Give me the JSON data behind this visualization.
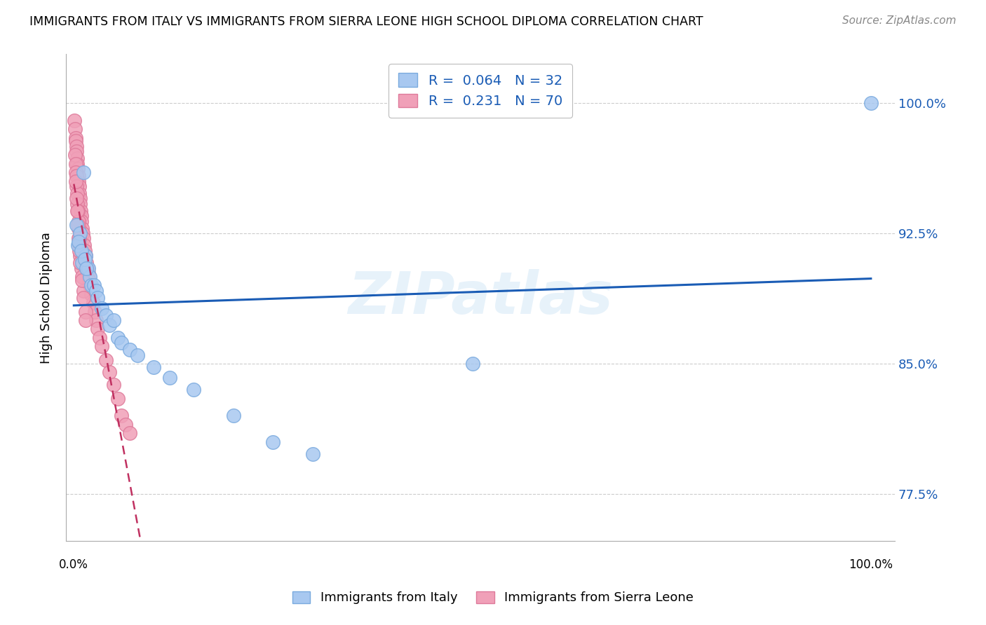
{
  "title": "IMMIGRANTS FROM ITALY VS IMMIGRANTS FROM SIERRA LEONE HIGH SCHOOL DIPLOMA CORRELATION CHART",
  "source": "Source: ZipAtlas.com",
  "ylabel": "High School Diploma",
  "yticks": [
    0.775,
    0.85,
    0.925,
    1.0
  ],
  "ytick_labels": [
    "77.5%",
    "85.0%",
    "92.5%",
    "100.0%"
  ],
  "legend_italy_R": "0.064",
  "legend_italy_N": "32",
  "legend_sierra_R": "0.231",
  "legend_sierra_N": "70",
  "legend_label_italy": "Immigrants from Italy",
  "legend_label_sierra": "Immigrants from Sierra Leone",
  "italy_color": "#a8c8f0",
  "sierra_color": "#f0a0b8",
  "italy_edge_color": "#7aaade",
  "sierra_edge_color": "#de7a9a",
  "italy_line_color": "#1a5cb5",
  "sierra_line_color": "#c03060",
  "watermark_text": "ZIPatlas",
  "italy_x": [
    0.3,
    1.2,
    0.5,
    0.8,
    1.5,
    0.6,
    1.0,
    0.9,
    1.8,
    2.0,
    2.2,
    1.4,
    1.6,
    2.5,
    2.8,
    3.0,
    3.5,
    4.0,
    4.5,
    5.0,
    5.5,
    6.0,
    7.0,
    8.0,
    10.0,
    12.0,
    15.0,
    20.0,
    25.0,
    30.0,
    50.0,
    100.0
  ],
  "italy_y": [
    0.93,
    0.96,
    0.918,
    0.925,
    0.912,
    0.92,
    0.908,
    0.915,
    0.905,
    0.9,
    0.895,
    0.91,
    0.905,
    0.895,
    0.892,
    0.888,
    0.882,
    0.878,
    0.872,
    0.875,
    0.865,
    0.862,
    0.858,
    0.855,
    0.848,
    0.842,
    0.835,
    0.82,
    0.805,
    0.798,
    0.85,
    1.0
  ],
  "sierra_x": [
    0.1,
    0.15,
    0.2,
    0.25,
    0.3,
    0.35,
    0.4,
    0.45,
    0.5,
    0.55,
    0.6,
    0.65,
    0.7,
    0.75,
    0.8,
    0.85,
    0.9,
    0.95,
    1.0,
    1.1,
    1.2,
    1.3,
    1.4,
    1.5,
    1.6,
    1.7,
    1.8,
    1.9,
    2.0,
    2.2,
    2.4,
    2.6,
    2.8,
    3.0,
    3.2,
    3.5,
    4.0,
    4.5,
    5.0,
    5.5,
    6.0,
    6.5,
    7.0,
    0.15,
    0.2,
    0.25,
    0.3,
    0.35,
    0.4,
    0.45,
    0.5,
    0.55,
    0.6,
    0.65,
    0.7,
    0.8,
    0.9,
    1.0,
    1.2,
    1.5,
    0.2,
    0.3,
    0.4,
    0.5,
    0.6,
    0.7,
    0.8,
    1.0,
    1.2,
    1.5
  ],
  "sierra_y": [
    0.99,
    0.985,
    0.98,
    0.978,
    0.975,
    0.972,
    0.968,
    0.965,
    0.962,
    0.958,
    0.955,
    0.952,
    0.948,
    0.945,
    0.942,
    0.938,
    0.935,
    0.932,
    0.928,
    0.925,
    0.922,
    0.918,
    0.915,
    0.912,
    0.908,
    0.905,
    0.902,
    0.898,
    0.895,
    0.89,
    0.885,
    0.88,
    0.875,
    0.87,
    0.865,
    0.86,
    0.852,
    0.845,
    0.838,
    0.83,
    0.82,
    0.815,
    0.81,
    0.97,
    0.965,
    0.96,
    0.958,
    0.952,
    0.948,
    0.942,
    0.938,
    0.932,
    0.928,
    0.922,
    0.918,
    0.912,
    0.905,
    0.9,
    0.892,
    0.88,
    0.955,
    0.945,
    0.938,
    0.93,
    0.922,
    0.915,
    0.908,
    0.898,
    0.888,
    0.875
  ],
  "ylim": [
    0.748,
    1.028
  ],
  "xlim": [
    -1.0,
    103.0
  ],
  "xticks": [
    0,
    10,
    20,
    30,
    40,
    50,
    60,
    70,
    80,
    90,
    100
  ]
}
